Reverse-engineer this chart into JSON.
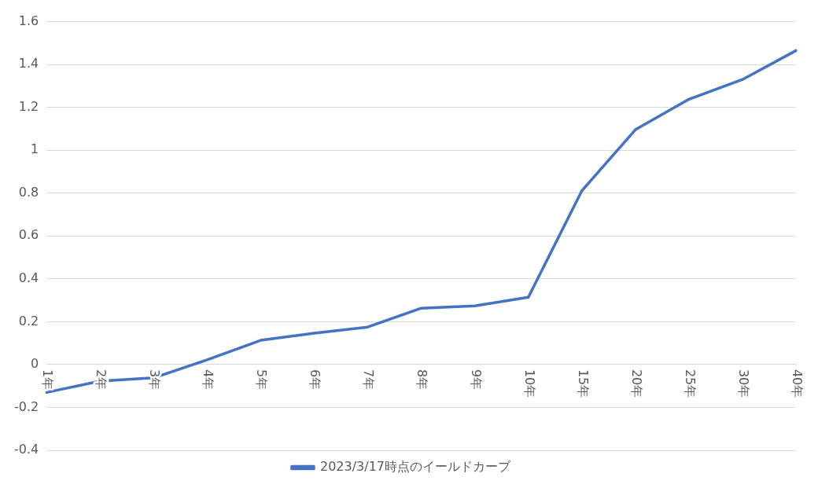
{
  "chart_data": {
    "type": "line",
    "categories": [
      "1年",
      "2年",
      "3年",
      "4年",
      "5年",
      "6年",
      "7年",
      "8年",
      "9年",
      "10年",
      "15年",
      "20年",
      "25年",
      "30年",
      "40年"
    ],
    "series": [
      {
        "name": "2023/3/17時点のイールドカーブ",
        "color": "#4472c4",
        "values": [
          -0.13,
          -0.077,
          -0.062,
          0.022,
          0.113,
          0.146,
          0.175,
          0.263,
          0.274,
          0.314,
          0.811,
          1.096,
          1.238,
          1.33,
          1.465
        ]
      }
    ],
    "ylim": [
      -0.4,
      1.6
    ],
    "yticks": [
      -0.4,
      -0.2,
      0,
      0.2,
      0.4,
      0.6,
      0.8,
      1,
      1.2,
      1.4,
      1.6
    ],
    "grid": "y",
    "legend": "bottom",
    "marker": "none",
    "line_style": "solid"
  }
}
